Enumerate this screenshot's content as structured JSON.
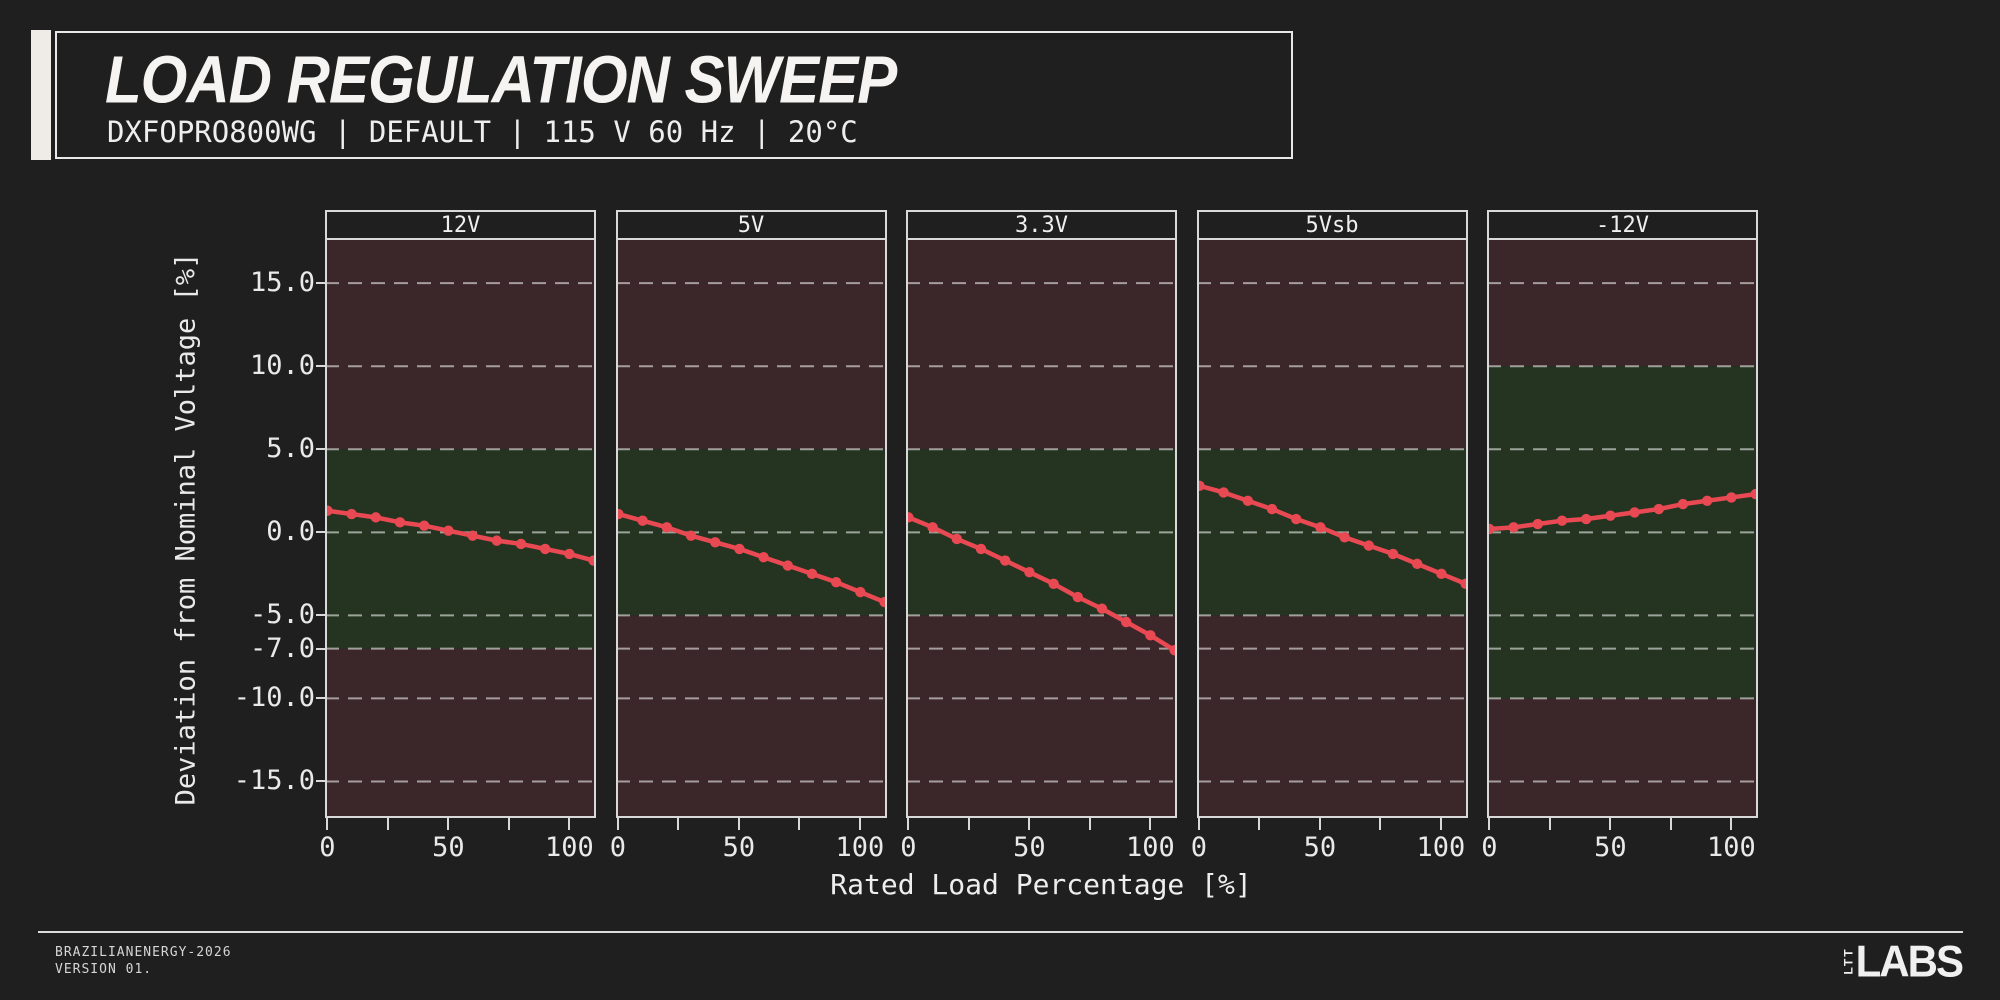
{
  "header": {
    "title": "LOAD REGULATION SWEEP",
    "subtitle": "DXFOPRO800WG | DEFAULT | 115 V 60 Hz | 20°C"
  },
  "footer": {
    "line1": "BRAZILIANENERGY-2026",
    "line2": "VERSION 01.",
    "logo_small": "LTT",
    "logo_large": "LABS"
  },
  "chart_data": {
    "type": "line",
    "xlabel": "Rated Load Percentage [%]",
    "ylabel": "Deviation from Nominal Voltage [%]",
    "x": [
      0,
      10,
      20,
      30,
      40,
      50,
      60,
      70,
      80,
      90,
      100,
      110
    ],
    "xlim": [
      -1,
      111
    ],
    "ylim": [
      -17.2,
      17.6
    ],
    "xticks": [
      0,
      50,
      100
    ],
    "xtick_labels": [
      "0",
      "50",
      "100"
    ],
    "minor_xticks": [
      25,
      75
    ],
    "yticks": [
      15,
      10,
      5,
      0,
      -5,
      -7,
      -10,
      -15
    ],
    "ytick_labels": [
      "15.0",
      "10.0",
      "5.0",
      "0.0",
      "-5.0",
      "-7.0",
      "-10.0",
      "-15.0"
    ],
    "grid": "horizontal-dashed",
    "legend": "none",
    "panels": [
      {
        "label": "12V",
        "good_zone": [
          -7,
          5
        ],
        "values": [
          1.3,
          1.1,
          0.9,
          0.6,
          0.4,
          0.1,
          -0.2,
          -0.5,
          -0.7,
          -1.0,
          -1.3,
          -1.7
        ]
      },
      {
        "label": "5V",
        "good_zone": [
          -5,
          5
        ],
        "values": [
          1.1,
          0.7,
          0.3,
          -0.2,
          -0.6,
          -1.0,
          -1.5,
          -2.0,
          -2.5,
          -3.0,
          -3.6,
          -4.2
        ]
      },
      {
        "label": "3.3V",
        "good_zone": [
          -5,
          5
        ],
        "values": [
          0.9,
          0.3,
          -0.4,
          -1.0,
          -1.7,
          -2.4,
          -3.1,
          -3.9,
          -4.6,
          -5.4,
          -6.2,
          -7.1
        ]
      },
      {
        "label": "5Vsb",
        "good_zone": [
          -5,
          5
        ],
        "values": [
          2.8,
          2.4,
          1.9,
          1.4,
          0.8,
          0.3,
          -0.3,
          -0.8,
          -1.3,
          -1.9,
          -2.5,
          -3.1
        ]
      },
      {
        "label": "-12V",
        "good_zone": [
          -10,
          10
        ],
        "values": [
          0.2,
          0.3,
          0.5,
          0.7,
          0.8,
          1.0,
          1.2,
          1.4,
          1.7,
          1.9,
          2.1,
          2.3
        ]
      }
    ],
    "colors": {
      "line": "#e94952",
      "good_zone": "#243421",
      "bad_zone": "#3b2629",
      "background": "#1e1f1e",
      "grid": "rgba(255,255,255,0.55)",
      "text": "#e9e9e9",
      "border": "#d9d9d9"
    }
  }
}
